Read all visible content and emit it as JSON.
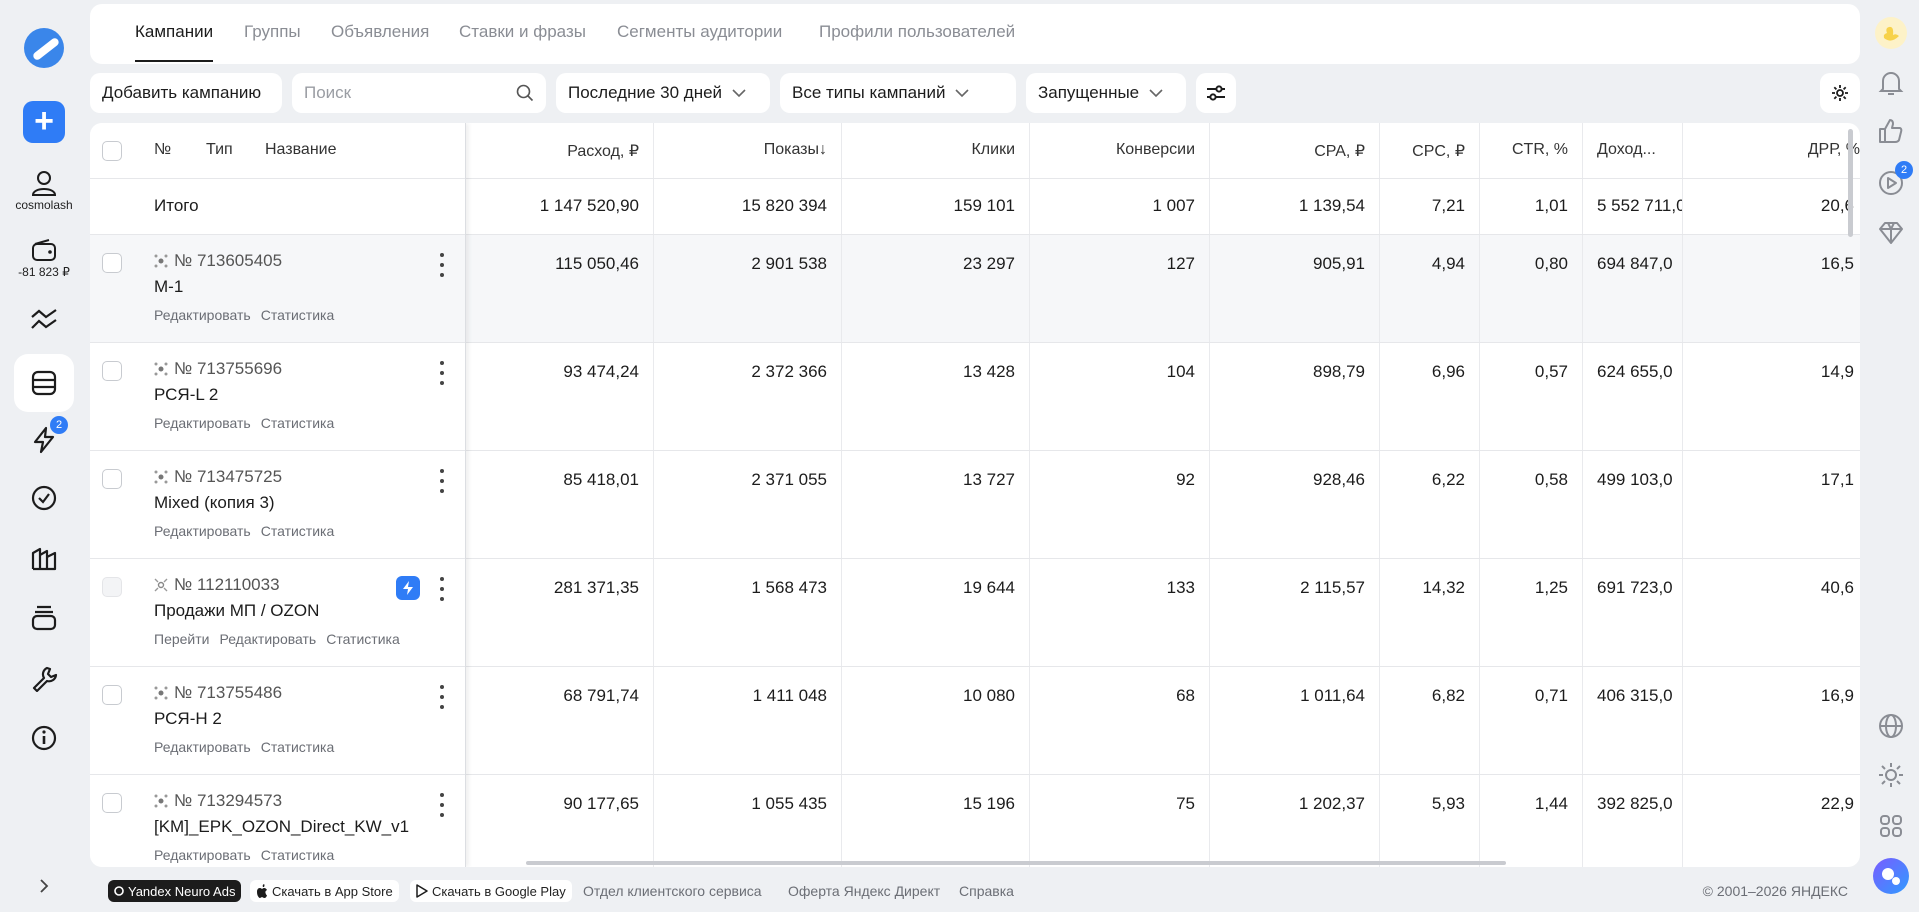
{
  "sidebar": {
    "user_label": "cosmolash",
    "wallet_label": "-81 823 ₽",
    "events_badge": "2"
  },
  "right_rail": {
    "video_badge": "2"
  },
  "tabs": [
    {
      "label": "Кампании"
    },
    {
      "label": "Группы"
    },
    {
      "label": "Объявления"
    },
    {
      "label": "Ставки и фразы"
    },
    {
      "label": "Сегменты аудитории"
    },
    {
      "label": "Профили пользователей"
    }
  ],
  "toolbar": {
    "add_campaign_label": "Добавить кампанию",
    "search_placeholder": "Поиск",
    "period_label": "Последние 30 дней",
    "types_label": "Все типы кампаний",
    "status_label": "Запущенные"
  },
  "table": {
    "headers": {
      "num": "№",
      "type": "Тип",
      "name": "Название",
      "cost": "Расход, ₽",
      "impressions": "Показы↓",
      "clicks": "Клики",
      "conversions": "Конверсии",
      "cpa": "CPA, ₽",
      "cpc": "CPC, ₽",
      "ctr": "CTR, %",
      "income": "Доход...",
      "drr": "ДРР, %"
    },
    "total": {
      "label": "Итого",
      "cost": "1 147 520,90",
      "impressions": "15 820 394",
      "clicks": "159 101",
      "conversions": "1 007",
      "cpa": "1 139,54",
      "cpc": "7,21",
      "ctr": "1,01",
      "income": "5 552 711,0",
      "drr": "20,6"
    },
    "rows": [
      {
        "num": "№ 713605405",
        "name": "М-1",
        "links": [
          "Редактировать",
          "Статистика"
        ],
        "cost": "115 050,46",
        "impressions": "2 901 538",
        "clicks": "23 297",
        "conversions": "127",
        "cpa": "905,91",
        "cpc": "4,94",
        "ctr": "0,80",
        "income": "694 847,0",
        "drr": "16,5"
      },
      {
        "num": "№ 713755696",
        "name": "РСЯ-L 2",
        "links": [
          "Редактировать",
          "Статистика"
        ],
        "cost": "93 474,24",
        "impressions": "2 372 366",
        "clicks": "13 428",
        "conversions": "104",
        "cpa": "898,79",
        "cpc": "6,96",
        "ctr": "0,57",
        "income": "624 655,0",
        "drr": "14,9"
      },
      {
        "num": "№ 713475725",
        "name": "Mixed (копия 3)",
        "links": [
          "Редактировать",
          "Статистика"
        ],
        "cost": "85 418,01",
        "impressions": "2 371 055",
        "clicks": "13 727",
        "conversions": "92",
        "cpa": "928,46",
        "cpc": "6,22",
        "ctr": "0,58",
        "income": "499 103,0",
        "drr": "17,1"
      },
      {
        "num": "№ 112110033",
        "name": "Продажи МП / OZON",
        "links": [
          "Перейти",
          "Редактировать",
          "Статистика"
        ],
        "cost": "281 371,35",
        "impressions": "1 568 473",
        "clicks": "19 644",
        "conversions": "133",
        "cpa": "2 115,57",
        "cpc": "14,32",
        "ctr": "1,25",
        "income": "691 723,0",
        "drr": "40,6"
      },
      {
        "num": "№ 713755486",
        "name": "РСЯ-Н 2",
        "links": [
          "Редактировать",
          "Статистика"
        ],
        "cost": "68 791,74",
        "impressions": "1 411 048",
        "clicks": "10 080",
        "conversions": "68",
        "cpa": "1 011,64",
        "cpc": "6,82",
        "ctr": "0,71",
        "income": "406 315,0",
        "drr": "16,9"
      },
      {
        "num": "№ 713294573",
        "name": "[KM]_EPK_OZON_Direct_KW_v1",
        "links": [
          "Редактировать",
          "Статистика"
        ],
        "cost": "90 177,65",
        "impressions": "1 055 435",
        "clicks": "15 196",
        "conversions": "75",
        "cpa": "1 202,37",
        "cpc": "5,93",
        "ctr": "1,44",
        "income": "392 825,0",
        "drr": "22,9"
      }
    ]
  },
  "footer": {
    "neuro_ads": "Yandex Neuro Ads",
    "app_store": "Скачать в App Store",
    "google_play": "Скачать в Google Play",
    "links": [
      "Отдел клиентского сервиса",
      "Оферта Яндекс Директ",
      "Справка"
    ],
    "copyright": "© 2001–2026 ЯНДЕКС"
  },
  "colors": {
    "accent": "#2f7cf6",
    "background": "#eef0f3"
  }
}
